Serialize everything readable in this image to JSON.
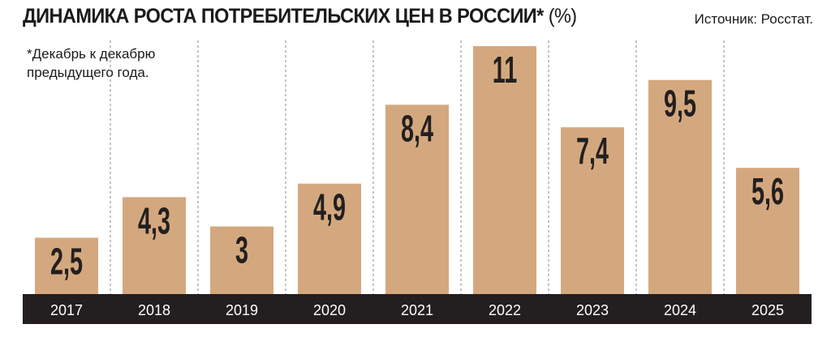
{
  "chart_data": {
    "type": "bar",
    "title": "ДИНАМИКА РОСТА ПОТРЕБИТЕЛЬСКИХ ЦЕН В РОССИИ*",
    "title_suffix": "(%)",
    "source": "Источник: Росстат.",
    "note": "*Декабрь к декабрю предыдущего года.",
    "categories": [
      "2017",
      "2018",
      "2019",
      "2020",
      "2021",
      "2022",
      "2023",
      "2024",
      "2025"
    ],
    "values": [
      2.5,
      4.3,
      3,
      4.9,
      8.4,
      11,
      7.4,
      9.5,
      5.6
    ],
    "value_labels": [
      "2,5",
      "4,3",
      "3",
      "4,9",
      "8,4",
      "11",
      "7,4",
      "9,5",
      "5,6"
    ],
    "xlabel": "",
    "ylabel": "",
    "ylim": [
      0,
      11
    ],
    "grid": "vertical dashed separators",
    "legend": "none",
    "colors": {
      "bar": "#d4a87e",
      "axis_band": "#231f20",
      "year_text": "#ffffff",
      "value_text": "#231f20",
      "separator": "#8a8a8a"
    }
  }
}
